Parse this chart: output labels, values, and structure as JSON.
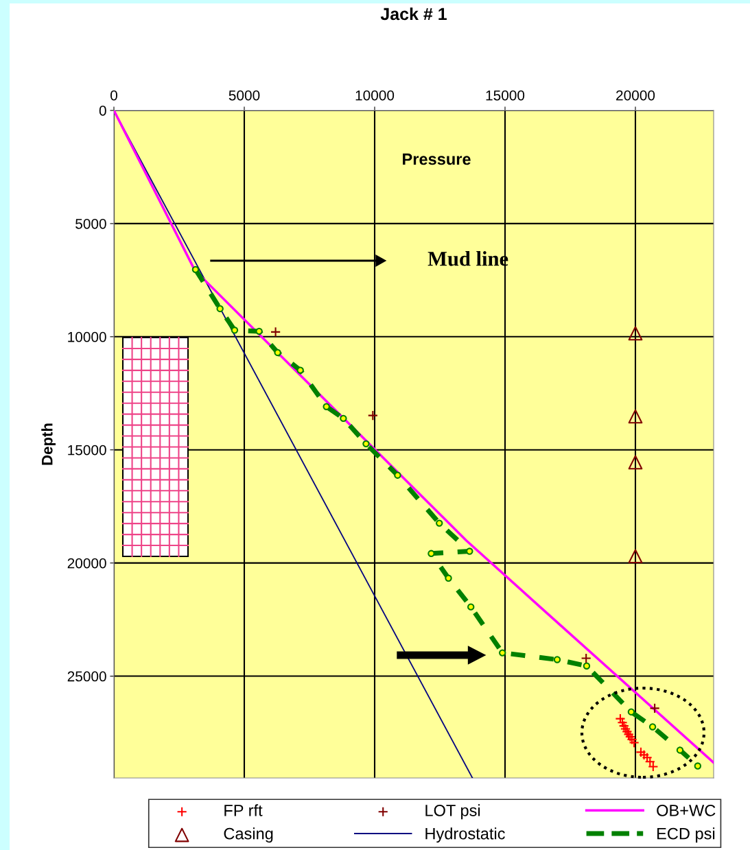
{
  "chart_data": {
    "type": "line",
    "title": "Jack # 1",
    "ylabel": "Depth",
    "annotations": [
      "Pressure",
      "Mud line"
    ],
    "xlim": [
      0,
      23000
    ],
    "xticks": [
      0,
      5000,
      10000,
      15000,
      20000
    ],
    "ylim": [
      29500,
      0
    ],
    "yticks": [
      0,
      5000,
      10000,
      15000,
      20000,
      25000
    ],
    "grid": true,
    "legend": "bottom",
    "series": [
      {
        "name": "FP rft",
        "type": "scatter",
        "color": "#ff0000",
        "marker": "cross",
        "x": [
          19420,
          19500,
          19560,
          19620,
          19680,
          19740,
          19800,
          19870,
          19950,
          20210,
          20330,
          20450,
          20560,
          20680
        ],
        "values": [
          26880,
          27050,
          27200,
          27330,
          27450,
          27570,
          27680,
          27800,
          27940,
          28360,
          28480,
          28600,
          28780,
          29000
        ]
      },
      {
        "name": "Casing",
        "type": "scatter",
        "color": "#800000",
        "marker": "triangle",
        "x": [
          20000,
          20000,
          20000,
          20000
        ],
        "values": [
          9850,
          13520,
          15550,
          19700
        ]
      },
      {
        "name": "LOT psi",
        "type": "scatter",
        "color": "#800000",
        "marker": "cross",
        "x": [
          6200,
          9930,
          18110,
          20740
        ],
        "values": [
          9790,
          13480,
          24210,
          26420
        ]
      },
      {
        "name": "Hydrostatic",
        "color": "#000080",
        "marker": "none",
        "line_style": "solid",
        "x": [
          0,
          13750
        ],
        "values": [
          0,
          29500
        ]
      },
      {
        "name": "OB+WC",
        "color": "#ff00ff",
        "marker": "none",
        "line_style": "solid",
        "x": [
          0,
          3100,
          13510,
          16400,
          23000
        ],
        "values": [
          0,
          7060,
          19000,
          22000,
          28820
        ]
      },
      {
        "name": "ECD psi",
        "color": "#008000",
        "marker": "circle",
        "line_style": "dashed",
        "x": [
          3130,
          4070,
          4630,
          5570,
          6280,
          7150,
          8150,
          8800,
          9670,
          10880,
          12480,
          13640,
          12170,
          12830,
          13690,
          14900,
          17000,
          18130,
          19840,
          20660,
          21710,
          22390
        ],
        "values": [
          7030,
          8760,
          9710,
          9760,
          10700,
          11480,
          13090,
          13610,
          14730,
          16120,
          18240,
          19480,
          19580,
          20670,
          21940,
          23970,
          24270,
          24550,
          26580,
          27240,
          28270,
          28970
        ]
      }
    ]
  }
}
